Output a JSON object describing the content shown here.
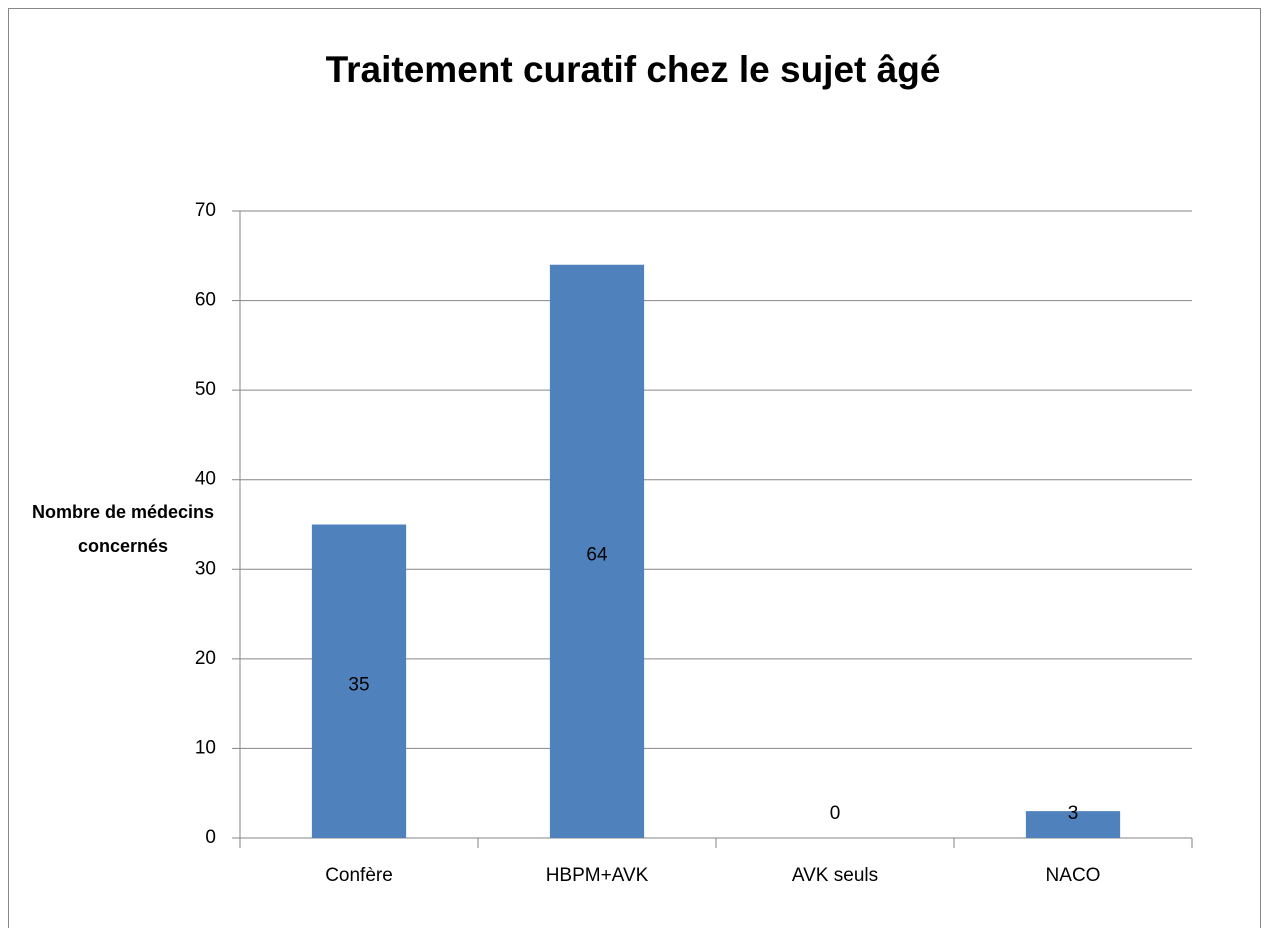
{
  "chart_data": {
    "type": "bar",
    "title": "Traitement curatif chez le sujet âgé",
    "y_label": "Nombre de médecins concernés",
    "categories": [
      "Confère",
      "HBPM+AVK",
      "AVK seuls",
      "NACO"
    ],
    "values": [
      35,
      64,
      0,
      3
    ],
    "color": "#4f81bd",
    "ylim": [
      0,
      70
    ],
    "yticks": [
      0,
      10,
      20,
      30,
      40,
      50,
      60,
      70
    ],
    "grid": true
  }
}
